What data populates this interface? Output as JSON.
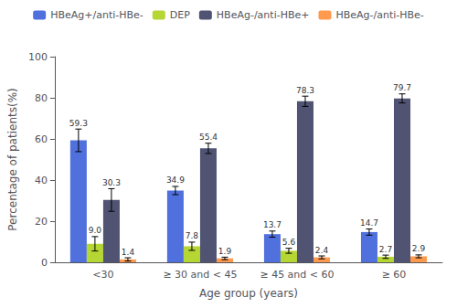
{
  "chart_data": {
    "type": "bar",
    "categories": [
      "<30",
      "≥ 30 and < 45",
      "≥ 45 and < 60",
      "≥ 60"
    ],
    "series": [
      {
        "name": "HBeAg+/anti-HBe-",
        "values": [
          59.3,
          34.9,
          13.7,
          14.7
        ],
        "errors": [
          5.5,
          2.0,
          1.5,
          1.5
        ],
        "value_labels": [
          "59.3",
          "34.9",
          "13.7",
          "14.7"
        ]
      },
      {
        "name": "DEP",
        "values": [
          9.0,
          7.8,
          5.6,
          2.7
        ],
        "errors": [
          3.5,
          2.0,
          1.2,
          0.8
        ],
        "value_labels": [
          "9.0",
          "7.8",
          "5.6",
          "2.7"
        ]
      },
      {
        "name": "HBeAg-/anti-HBe+",
        "values": [
          30.3,
          55.4,
          78.3,
          79.7
        ],
        "errors": [
          5.5,
          2.5,
          2.5,
          2.2
        ],
        "value_labels": [
          "30.3",
          "55.4",
          "78.3",
          "79.7"
        ]
      },
      {
        "name": "HBeAg-/anti-HBe-",
        "values": [
          1.4,
          1.9,
          2.4,
          2.9
        ],
        "errors": [
          0.8,
          0.6,
          0.7,
          0.7
        ],
        "value_labels": [
          "1.4",
          "1.9",
          "2.4",
          "2.9"
        ]
      }
    ],
    "ylabel": "Percentage of patients(%)",
    "xlabel": "Age group (years)",
    "ylim": [
      0,
      100
    ],
    "yticks": [
      0,
      20,
      40,
      60,
      80,
      100
    ],
    "data_labels": true,
    "grid": false,
    "legend": "top"
  }
}
